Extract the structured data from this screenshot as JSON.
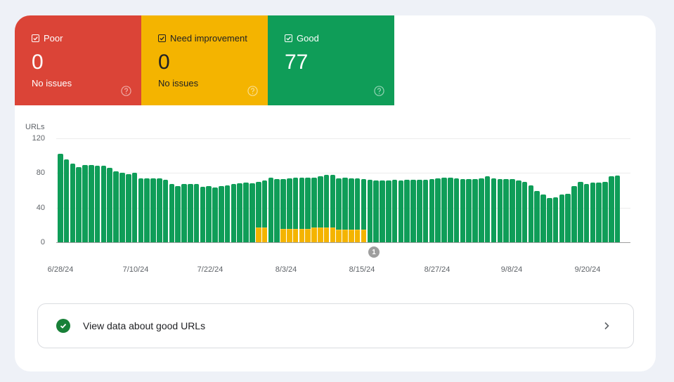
{
  "summary": {
    "poor": {
      "label": "Poor",
      "count": "0",
      "sub": "No issues",
      "color": "#db4437"
    },
    "need_improvement": {
      "label": "Need improvement",
      "count": "0",
      "sub": "No issues",
      "color": "#f4b400"
    },
    "good": {
      "label": "Good",
      "count": "77",
      "sub": "",
      "color": "#0f9d58"
    }
  },
  "chart": {
    "ylabel": "URLs",
    "yticks": [
      "120",
      "80",
      "40",
      "0"
    ],
    "xticks": [
      "6/28/24",
      "7/10/24",
      "7/22/24",
      "8/3/24",
      "8/15/24",
      "8/27/24",
      "9/8/24",
      "9/20/24"
    ],
    "annotation": "1"
  },
  "link": {
    "label": "View data about good URLs"
  },
  "chart_data": {
    "type": "bar",
    "title": "",
    "xlabel": "",
    "ylabel": "URLs",
    "ylim": [
      0,
      120
    ],
    "stacked": true,
    "grid": true,
    "legend": [
      "Need improvement",
      "Good"
    ],
    "x_start": "6/28/24",
    "x_end": "9/26/24",
    "tick_labels": [
      "6/28/24",
      "7/10/24",
      "7/22/24",
      "8/3/24",
      "8/15/24",
      "8/27/24",
      "9/8/24",
      "9/20/24"
    ],
    "series": [
      {
        "name": "Good",
        "color": "#0f9d58",
        "values": [
          102,
          96,
          91,
          87,
          89,
          89,
          88,
          88,
          86,
          82,
          80,
          79,
          80,
          74,
          74,
          74,
          74,
          72,
          67,
          65,
          67,
          67,
          67,
          64,
          65,
          63,
          65,
          66,
          67,
          68,
          69,
          68,
          54,
          55,
          75,
          73,
          58,
          59,
          60,
          60,
          60,
          59,
          60,
          62,
          62,
          60,
          61,
          60,
          60,
          59,
          72,
          71,
          71,
          71,
          72,
          71,
          72,
          72,
          72,
          72,
          73,
          74,
          75,
          75,
          74,
          73,
          73,
          73,
          74,
          76,
          74,
          73,
          73,
          73,
          71,
          70,
          66,
          59,
          55,
          51,
          52,
          55,
          56,
          65,
          70,
          67,
          69,
          69,
          70,
          76,
          77
        ]
      },
      {
        "name": "Need improvement",
        "color": "#f4b400",
        "values": [
          0,
          0,
          0,
          0,
          0,
          0,
          0,
          0,
          0,
          0,
          0,
          0,
          0,
          0,
          0,
          0,
          0,
          0,
          0,
          0,
          0,
          0,
          0,
          0,
          0,
          0,
          0,
          0,
          0,
          0,
          0,
          0,
          16,
          16,
          0,
          0,
          15,
          15,
          15,
          15,
          15,
          16,
          16,
          16,
          16,
          14,
          14,
          14,
          14,
          14,
          0,
          0,
          0,
          0,
          0,
          0,
          0,
          0,
          0,
          0,
          0,
          0,
          0,
          0,
          0,
          0,
          0,
          0,
          0,
          0,
          0,
          0,
          0,
          0,
          0,
          0,
          0,
          0,
          0,
          0,
          0,
          0,
          0,
          0,
          0,
          0,
          0,
          0,
          0,
          0,
          0
        ]
      }
    ]
  }
}
